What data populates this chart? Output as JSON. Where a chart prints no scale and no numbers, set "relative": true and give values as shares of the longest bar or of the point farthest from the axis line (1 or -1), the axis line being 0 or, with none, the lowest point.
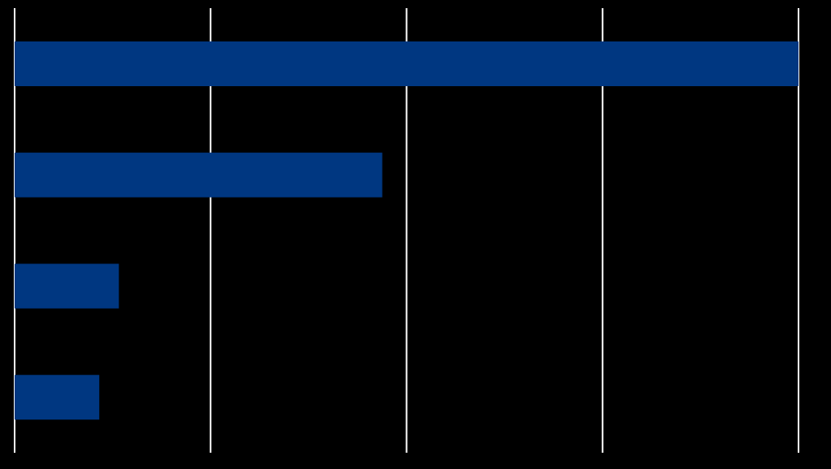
{
  "chart_data": {
    "type": "bar",
    "orientation": "horizontal",
    "relative": true,
    "categories": [
      null,
      null,
      null,
      null
    ],
    "values": [
      1,
      0.469,
      0.133,
      0.108
    ],
    "color": "#003781",
    "grid": "x"
  }
}
